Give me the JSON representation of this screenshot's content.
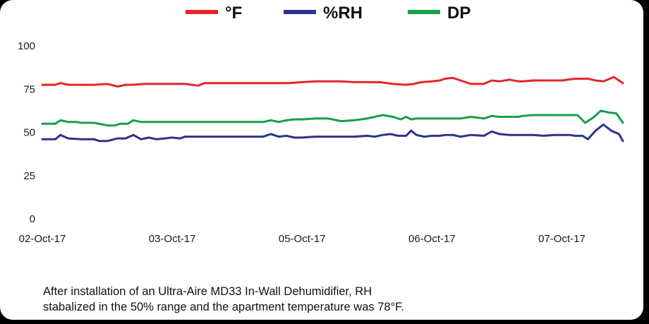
{
  "chart_data": {
    "type": "line",
    "title": "",
    "xlabel": "",
    "ylabel": "",
    "ylim": [
      0,
      100
    ],
    "yticks": [
      "0",
      "25",
      "50",
      "75",
      "100"
    ],
    "x_tick_labels": [
      "02-Oct-17",
      "03-Oct-17",
      "05-Oct-17",
      "06-Oct-17",
      "07-Oct-17"
    ],
    "x_tick_positions": [
      0,
      1,
      2,
      3,
      4
    ],
    "xlim": [
      0,
      4.47
    ],
    "grid": false,
    "legend_position": "top",
    "series": [
      {
        "name": "°F",
        "color": "#e52629",
        "x": [
          0,
          0.1,
          0.14,
          0.2,
          0.3,
          0.4,
          0.5,
          0.58,
          0.64,
          0.7,
          0.78,
          0.84,
          0.9,
          1.0,
          1.1,
          1.2,
          1.25,
          1.3,
          1.36,
          1.45,
          1.55,
          1.65,
          1.7,
          1.8,
          1.9,
          2.0,
          2.1,
          2.2,
          2.3,
          2.4,
          2.5,
          2.6,
          2.7,
          2.8,
          2.86,
          2.92,
          3.0,
          3.06,
          3.1,
          3.16,
          3.22,
          3.3,
          3.4,
          3.46,
          3.52,
          3.6,
          3.66,
          3.7,
          3.78,
          3.86,
          3.94,
          4.0,
          4.1,
          4.2,
          4.26,
          4.32,
          4.4,
          4.47
        ],
        "y": [
          77.5,
          77.5,
          78.5,
          77.5,
          77.5,
          77.5,
          78,
          76.5,
          77.5,
          77.5,
          78,
          78,
          78,
          78,
          78,
          77,
          78.5,
          78.5,
          78.5,
          78.5,
          78.5,
          78.5,
          78.5,
          78.5,
          78.5,
          79,
          79.5,
          79.5,
          79.5,
          79,
          79,
          79,
          78,
          77.5,
          78,
          79,
          79.5,
          80,
          81,
          81.5,
          80,
          78,
          78,
          80,
          79.5,
          80.5,
          79.5,
          79.5,
          80,
          80,
          80,
          80,
          81,
          81,
          80,
          79.5,
          82,
          78.5
        ]
      },
      {
        "name": "%RH",
        "color": "#2e3192",
        "x": [
          0,
          0.1,
          0.14,
          0.2,
          0.3,
          0.4,
          0.44,
          0.5,
          0.58,
          0.64,
          0.7,
          0.76,
          0.82,
          0.88,
          0.94,
          1.0,
          1.06,
          1.1,
          1.2,
          1.3,
          1.4,
          1.5,
          1.6,
          1.7,
          1.76,
          1.82,
          1.88,
          1.94,
          2.0,
          2.1,
          2.2,
          2.3,
          2.4,
          2.5,
          2.56,
          2.62,
          2.68,
          2.74,
          2.8,
          2.84,
          2.88,
          2.94,
          3.0,
          3.06,
          3.1,
          3.16,
          3.22,
          3.3,
          3.4,
          3.46,
          3.52,
          3.6,
          3.66,
          3.7,
          3.78,
          3.86,
          3.94,
          4.0,
          4.06,
          4.1,
          4.16,
          4.2,
          4.26,
          4.32,
          4.38,
          4.44,
          4.47
        ],
        "y": [
          46,
          46,
          48.5,
          46.5,
          46,
          46,
          45,
          45,
          46.5,
          46.5,
          48.5,
          46,
          47,
          46,
          46.5,
          47,
          46.5,
          47.5,
          47.5,
          47.5,
          47.5,
          47.5,
          47.5,
          47.5,
          49,
          47.5,
          48,
          47,
          47,
          47.5,
          47.5,
          47.5,
          47.5,
          48,
          47.5,
          48.5,
          49,
          48,
          48,
          51,
          48.5,
          47.5,
          48,
          48,
          48.5,
          48.5,
          47.5,
          48.5,
          48,
          50.5,
          49,
          48.5,
          48.5,
          48.5,
          48.5,
          48,
          48.5,
          48.5,
          48.5,
          48,
          48,
          46,
          51,
          54.5,
          51,
          49,
          45
        ]
      },
      {
        "name": "DP",
        "color": "#17a04a",
        "x": [
          0,
          0.1,
          0.14,
          0.2,
          0.26,
          0.3,
          0.4,
          0.5,
          0.56,
          0.6,
          0.66,
          0.7,
          0.76,
          0.8,
          0.9,
          1.0,
          1.1,
          1.2,
          1.3,
          1.4,
          1.5,
          1.6,
          1.7,
          1.76,
          1.82,
          1.88,
          1.94,
          2.0,
          2.1,
          2.2,
          2.3,
          2.4,
          2.5,
          2.56,
          2.62,
          2.7,
          2.76,
          2.8,
          2.84,
          2.88,
          2.94,
          3.0,
          3.06,
          3.1,
          3.16,
          3.22,
          3.3,
          3.4,
          3.46,
          3.52,
          3.6,
          3.66,
          3.7,
          3.78,
          3.86,
          3.94,
          4.0,
          4.06,
          4.12,
          4.18,
          4.24,
          4.3,
          4.36,
          4.42,
          4.47
        ],
        "y": [
          55,
          55,
          57,
          56,
          56,
          55.5,
          55.5,
          54,
          54,
          55,
          55,
          57,
          56,
          56,
          56,
          56,
          56,
          56,
          56,
          56,
          56,
          56,
          56,
          57,
          56,
          57,
          57.5,
          57.5,
          58,
          58,
          56.5,
          57,
          58,
          59,
          60,
          59,
          57.5,
          59,
          57.5,
          58,
          58,
          58,
          58,
          58,
          58,
          58,
          59,
          58,
          59.5,
          59,
          59,
          59,
          59.5,
          60,
          60,
          60,
          60,
          60,
          60,
          55.5,
          58.5,
          62.5,
          61.5,
          61,
          55.5
        ]
      }
    ]
  },
  "caption": {
    "line1": "After installation of an Ultra-Aire MD33 In-Wall Dehumidifier, RH",
    "line2": "stabalized in the 50% range and the apartment temperature was 78°F."
  }
}
